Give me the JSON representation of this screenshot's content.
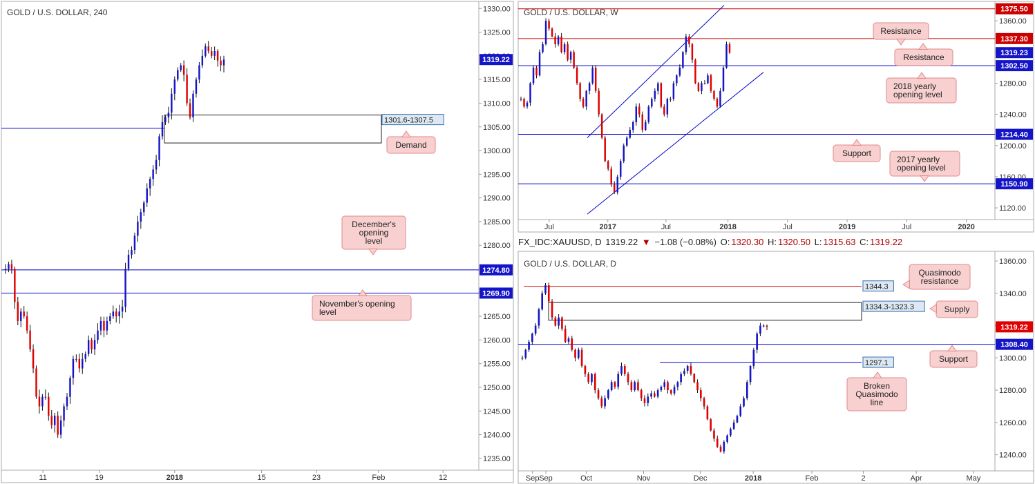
{
  "colors": {
    "up": "#1515c8",
    "down": "#e00000",
    "wick": "#111111",
    "blue_line": "#0000cc",
    "red_line": "#cc0000",
    "note_bg": "#f8d0d0",
    "note_border": "#e08a8a",
    "zone_border": "#222222",
    "zone_label_bg": "#dde8f2",
    "zone_label_border": "#3a6fb0",
    "axis_text": "#333333"
  },
  "chart_data": [
    {
      "id": "h4",
      "type": "candlestick",
      "title": "GOLD / U.S. DOLLAR, 240",
      "ylim": [
        1232.5,
        1331.5
      ],
      "y_ticks": [
        "1330.00",
        "1325.00",
        "1320.00",
        "1315.00",
        "1310.00",
        "1305.00",
        "1300.00",
        "1295.00",
        "1290.00",
        "1285.00",
        "1280.00",
        "1275.00",
        "1270.00",
        "1265.00",
        "1260.00",
        "1255.00",
        "1250.00",
        "1245.00",
        "1240.00",
        "1235.00"
      ],
      "x_ticks": [
        "11",
        "19",
        "2018",
        "15",
        "23",
        "Feb",
        "12"
      ],
      "price_tags": [
        {
          "value": 1319.22,
          "label": "1319.22",
          "color": "#1515c8"
        },
        {
          "value": 1274.8,
          "label": "1274.80",
          "color": "#1515c8"
        },
        {
          "value": 1269.9,
          "label": "1269.90",
          "color": "#1515c8"
        }
      ],
      "levels": [
        {
          "value": 1274.8,
          "color": "blue"
        },
        {
          "value": 1269.9,
          "color": "blue"
        },
        {
          "value": 1304.7,
          "color": "blue"
        }
      ],
      "zones": [
        {
          "low": 1301.6,
          "high": 1307.5,
          "label": "1301.6-1307.5"
        }
      ],
      "notes": [
        "Demand",
        "December's opening level",
        "November's opening level"
      ],
      "path": [
        1275,
        1276,
        1275,
        1268,
        1264,
        1266,
        1265,
        1262,
        1258,
        1254,
        1248,
        1246,
        1248,
        1248,
        1244,
        1242,
        1244,
        1240,
        1243,
        1246,
        1248,
        1252,
        1256,
        1256,
        1254,
        1256,
        1257,
        1260,
        1258,
        1260,
        1262,
        1264,
        1262,
        1264,
        1265,
        1266,
        1265,
        1266,
        1267,
        1275,
        1278,
        1279,
        1282,
        1285,
        1287,
        1289,
        1292,
        1294,
        1296,
        1298,
        1303,
        1306,
        1307,
        1308,
        1312,
        1315,
        1317,
        1318,
        1316,
        1310,
        1307,
        1312,
        1315,
        1318,
        1320,
        1322,
        1321,
        1320,
        1321,
        1319,
        1318,
        1319.22
      ]
    },
    {
      "id": "weekly",
      "type": "candlestick",
      "title": "GOLD / U.S. DOLLAR, W",
      "ylim": [
        1105,
        1385
      ],
      "y_ticks": [
        "1360.00",
        "1320.00",
        "1280.00",
        "1240.00",
        "1200.00",
        "1160.00",
        "1120.00"
      ],
      "x_ticks": [
        "Jul",
        "2017",
        "Jul",
        "2018",
        "Jul",
        "2019",
        "Jul",
        "2020"
      ],
      "price_tags": [
        {
          "value": 1375.5,
          "label": "1375.50",
          "color": "#cc0000"
        },
        {
          "value": 1337.3,
          "label": "1337.30",
          "color": "#cc0000"
        },
        {
          "value": 1319.23,
          "label": "1319.23",
          "color": "#1515c8"
        },
        {
          "value": 1302.5,
          "label": "1302.50",
          "color": "#1515c8"
        },
        {
          "value": 1214.4,
          "label": "1214.40",
          "color": "#1515c8"
        },
        {
          "value": 1150.9,
          "label": "1150.90",
          "color": "#1515c8"
        }
      ],
      "levels": [
        {
          "value": 1375.5,
          "color": "red"
        },
        {
          "value": 1337.3,
          "color": "red"
        },
        {
          "value": 1302.5,
          "color": "blue"
        },
        {
          "value": 1214.4,
          "color": "blue"
        },
        {
          "value": 1150.9,
          "color": "blue"
        }
      ],
      "notes": [
        "Resistance",
        "Resistance",
        "2018 yearly opening level",
        "Support",
        "2017 yearly opening level"
      ],
      "path": [
        1260,
        1250,
        1255,
        1280,
        1300,
        1290,
        1320,
        1330,
        1360,
        1350,
        1340,
        1330,
        1340,
        1320,
        1330,
        1310,
        1320,
        1300,
        1280,
        1260,
        1250,
        1270,
        1280,
        1300,
        1270,
        1240,
        1210,
        1180,
        1170,
        1150,
        1140,
        1160,
        1180,
        1200,
        1210,
        1220,
        1230,
        1250,
        1240,
        1220,
        1230,
        1250,
        1260,
        1270,
        1280,
        1250,
        1240,
        1260,
        1260,
        1280,
        1290,
        1300,
        1320,
        1340,
        1330,
        1310,
        1280,
        1270,
        1280,
        1280,
        1290,
        1270,
        1260,
        1250,
        1270,
        1300,
        1330,
        1319.23
      ]
    },
    {
      "id": "daily",
      "type": "candlestick",
      "title": "GOLD / U.S. DOLLAR, D",
      "ylim": [
        1230,
        1366
      ],
      "y_ticks": [
        "1360.00",
        "1340.00",
        "1320.00",
        "1300.00",
        "1280.00",
        "1260.00",
        "1240.00"
      ],
      "x_ticks": [
        "Sep",
        "Sep",
        "Oct",
        "Nov",
        "Dec",
        "2018",
        "Feb",
        "2",
        "Apr",
        "May"
      ],
      "price_tags": [
        {
          "value": 1319.22,
          "label": "1319.22",
          "color": "#e00000"
        },
        {
          "value": 1308.4,
          "label": "1308.40",
          "color": "#1515c8"
        }
      ],
      "levels": [
        {
          "value": 1344.3,
          "color": "red"
        },
        {
          "value": 1308.4,
          "color": "blue"
        },
        {
          "value": 1297.1,
          "color": "blue"
        }
      ],
      "zones": [
        {
          "low": 1323.3,
          "high": 1334.3,
          "label": "1334.3-1323.3"
        }
      ],
      "labels": [
        "1344.3",
        "1297.1"
      ],
      "notes": [
        "Quasimodo resistance",
        "Supply",
        "Support",
        "Broken Quasimodo line"
      ],
      "path": [
        1300,
        1305,
        1310,
        1315,
        1320,
        1330,
        1340,
        1345,
        1335,
        1325,
        1320,
        1325,
        1318,
        1310,
        1312,
        1305,
        1300,
        1305,
        1295,
        1290,
        1285,
        1290,
        1280,
        1275,
        1270,
        1275,
        1280,
        1285,
        1282,
        1290,
        1295,
        1290,
        1285,
        1280,
        1285,
        1280,
        1275,
        1272,
        1276,
        1278,
        1276,
        1280,
        1282,
        1285,
        1280,
        1278,
        1282,
        1285,
        1290,
        1292,
        1295,
        1290,
        1285,
        1280,
        1275,
        1270,
        1262,
        1255,
        1250,
        1245,
        1242,
        1248,
        1252,
        1256,
        1260,
        1264,
        1270,
        1275,
        1285,
        1295,
        1305,
        1315,
        1320,
        1320,
        1319.22
      ]
    }
  ],
  "legend": {
    "symbol": "FX_IDC:XAUUSD, D",
    "last": "1319.22",
    "change": "−1.08 (−0.08%)",
    "o_label": "O:",
    "o_value": "1320.30",
    "h_label": "H:",
    "h_value": "1320.50",
    "l_label": "L:",
    "l_value": "1315.63",
    "c_label": "C:",
    "c_value": "1319.22"
  }
}
